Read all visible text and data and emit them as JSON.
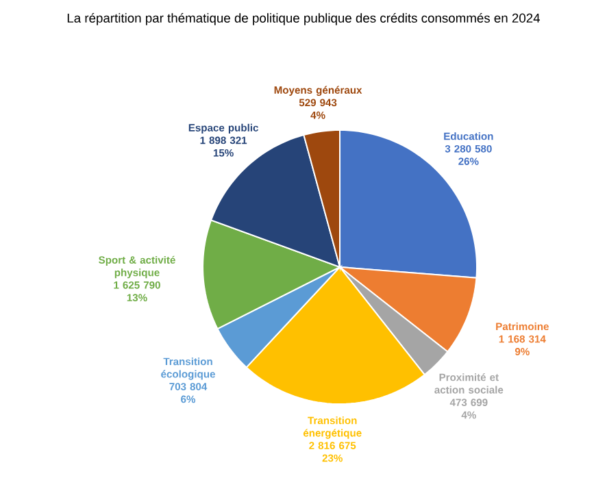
{
  "chart_data": {
    "type": "pie",
    "title": "La répartition par thématique de politique publique des crédits consommés en 2024",
    "categories": [
      "Education",
      "Patrimoine",
      "Proximité et action sociale",
      "Transition énergétique",
      "Transition écologique",
      "Sport & activité physique",
      "Espace public",
      "Moyens généraux"
    ],
    "values": [
      3280580,
      1168314,
      473699,
      2816675,
      703804,
      1625790,
      1898321,
      529943
    ],
    "value_labels": [
      "3 280 580",
      "1 168 314",
      "473 699",
      "2 816 675",
      "703 804",
      "1 625 790",
      "1 898 321",
      "529 943"
    ],
    "colors": [
      "#4472c4",
      "#ed7d31",
      "#a5a5a5",
      "#ffc000",
      "#5b9bd5",
      "#70ad47",
      "#264478",
      "#9e480e"
    ],
    "annotations": [
      {
        "text": "26%",
        "x": "Education"
      },
      {
        "text": "9%",
        "x": "Patrimoine"
      },
      {
        "text": "4%",
        "x": "Proximité et action sociale"
      },
      {
        "text": "23%",
        "x": "Transition énergétique"
      },
      {
        "text": "6%",
        "x": "Transition écologique"
      },
      {
        "text": "13%",
        "x": "Sport & activité physique"
      },
      {
        "text": "15%",
        "x": "Espace public"
      },
      {
        "text": "4%",
        "x": "Moyens généraux"
      }
    ]
  }
}
